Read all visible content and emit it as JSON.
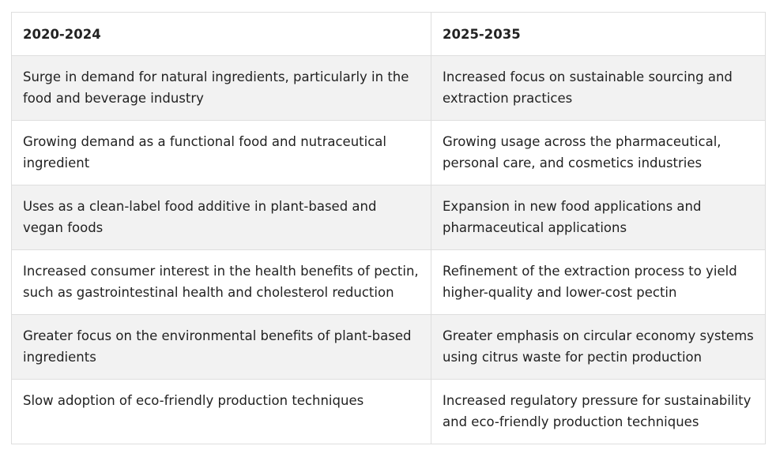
{
  "table": {
    "headers": [
      "2020-2024",
      "2025-2035"
    ],
    "rows": [
      [
        "Surge in demand for natural ingredients, particularly in the food and beverage industry",
        "Increased focus on sustainable sourcing and extraction practices"
      ],
      [
        "Growing demand as a functional food and nutraceutical ingredient",
        "Growing usage across the pharmaceutical, personal care, and cosmetics industries"
      ],
      [
        "Uses as a clean-label food additive in plant-based and vegan foods",
        "Expansion in new food applications and pharmaceutical applications"
      ],
      [
        "Increased consumer interest in the health benefits of pectin, such as gastrointestinal health and cholesterol reduction",
        "Refinement of the extraction process to yield higher-quality and lower-cost pectin"
      ],
      [
        "Greater focus on the environmental benefits of plant-based ingredients",
        "Greater emphasis on circular economy systems using citrus waste for pectin production"
      ],
      [
        "Slow adoption of eco-friendly production techniques",
        "Increased regulatory pressure for sustainability and eco-friendly production techniques"
      ]
    ]
  },
  "colors": {
    "border": "#dedede",
    "stripe": "#f2f2f2",
    "background": "#ffffff",
    "text": "#222222"
  }
}
